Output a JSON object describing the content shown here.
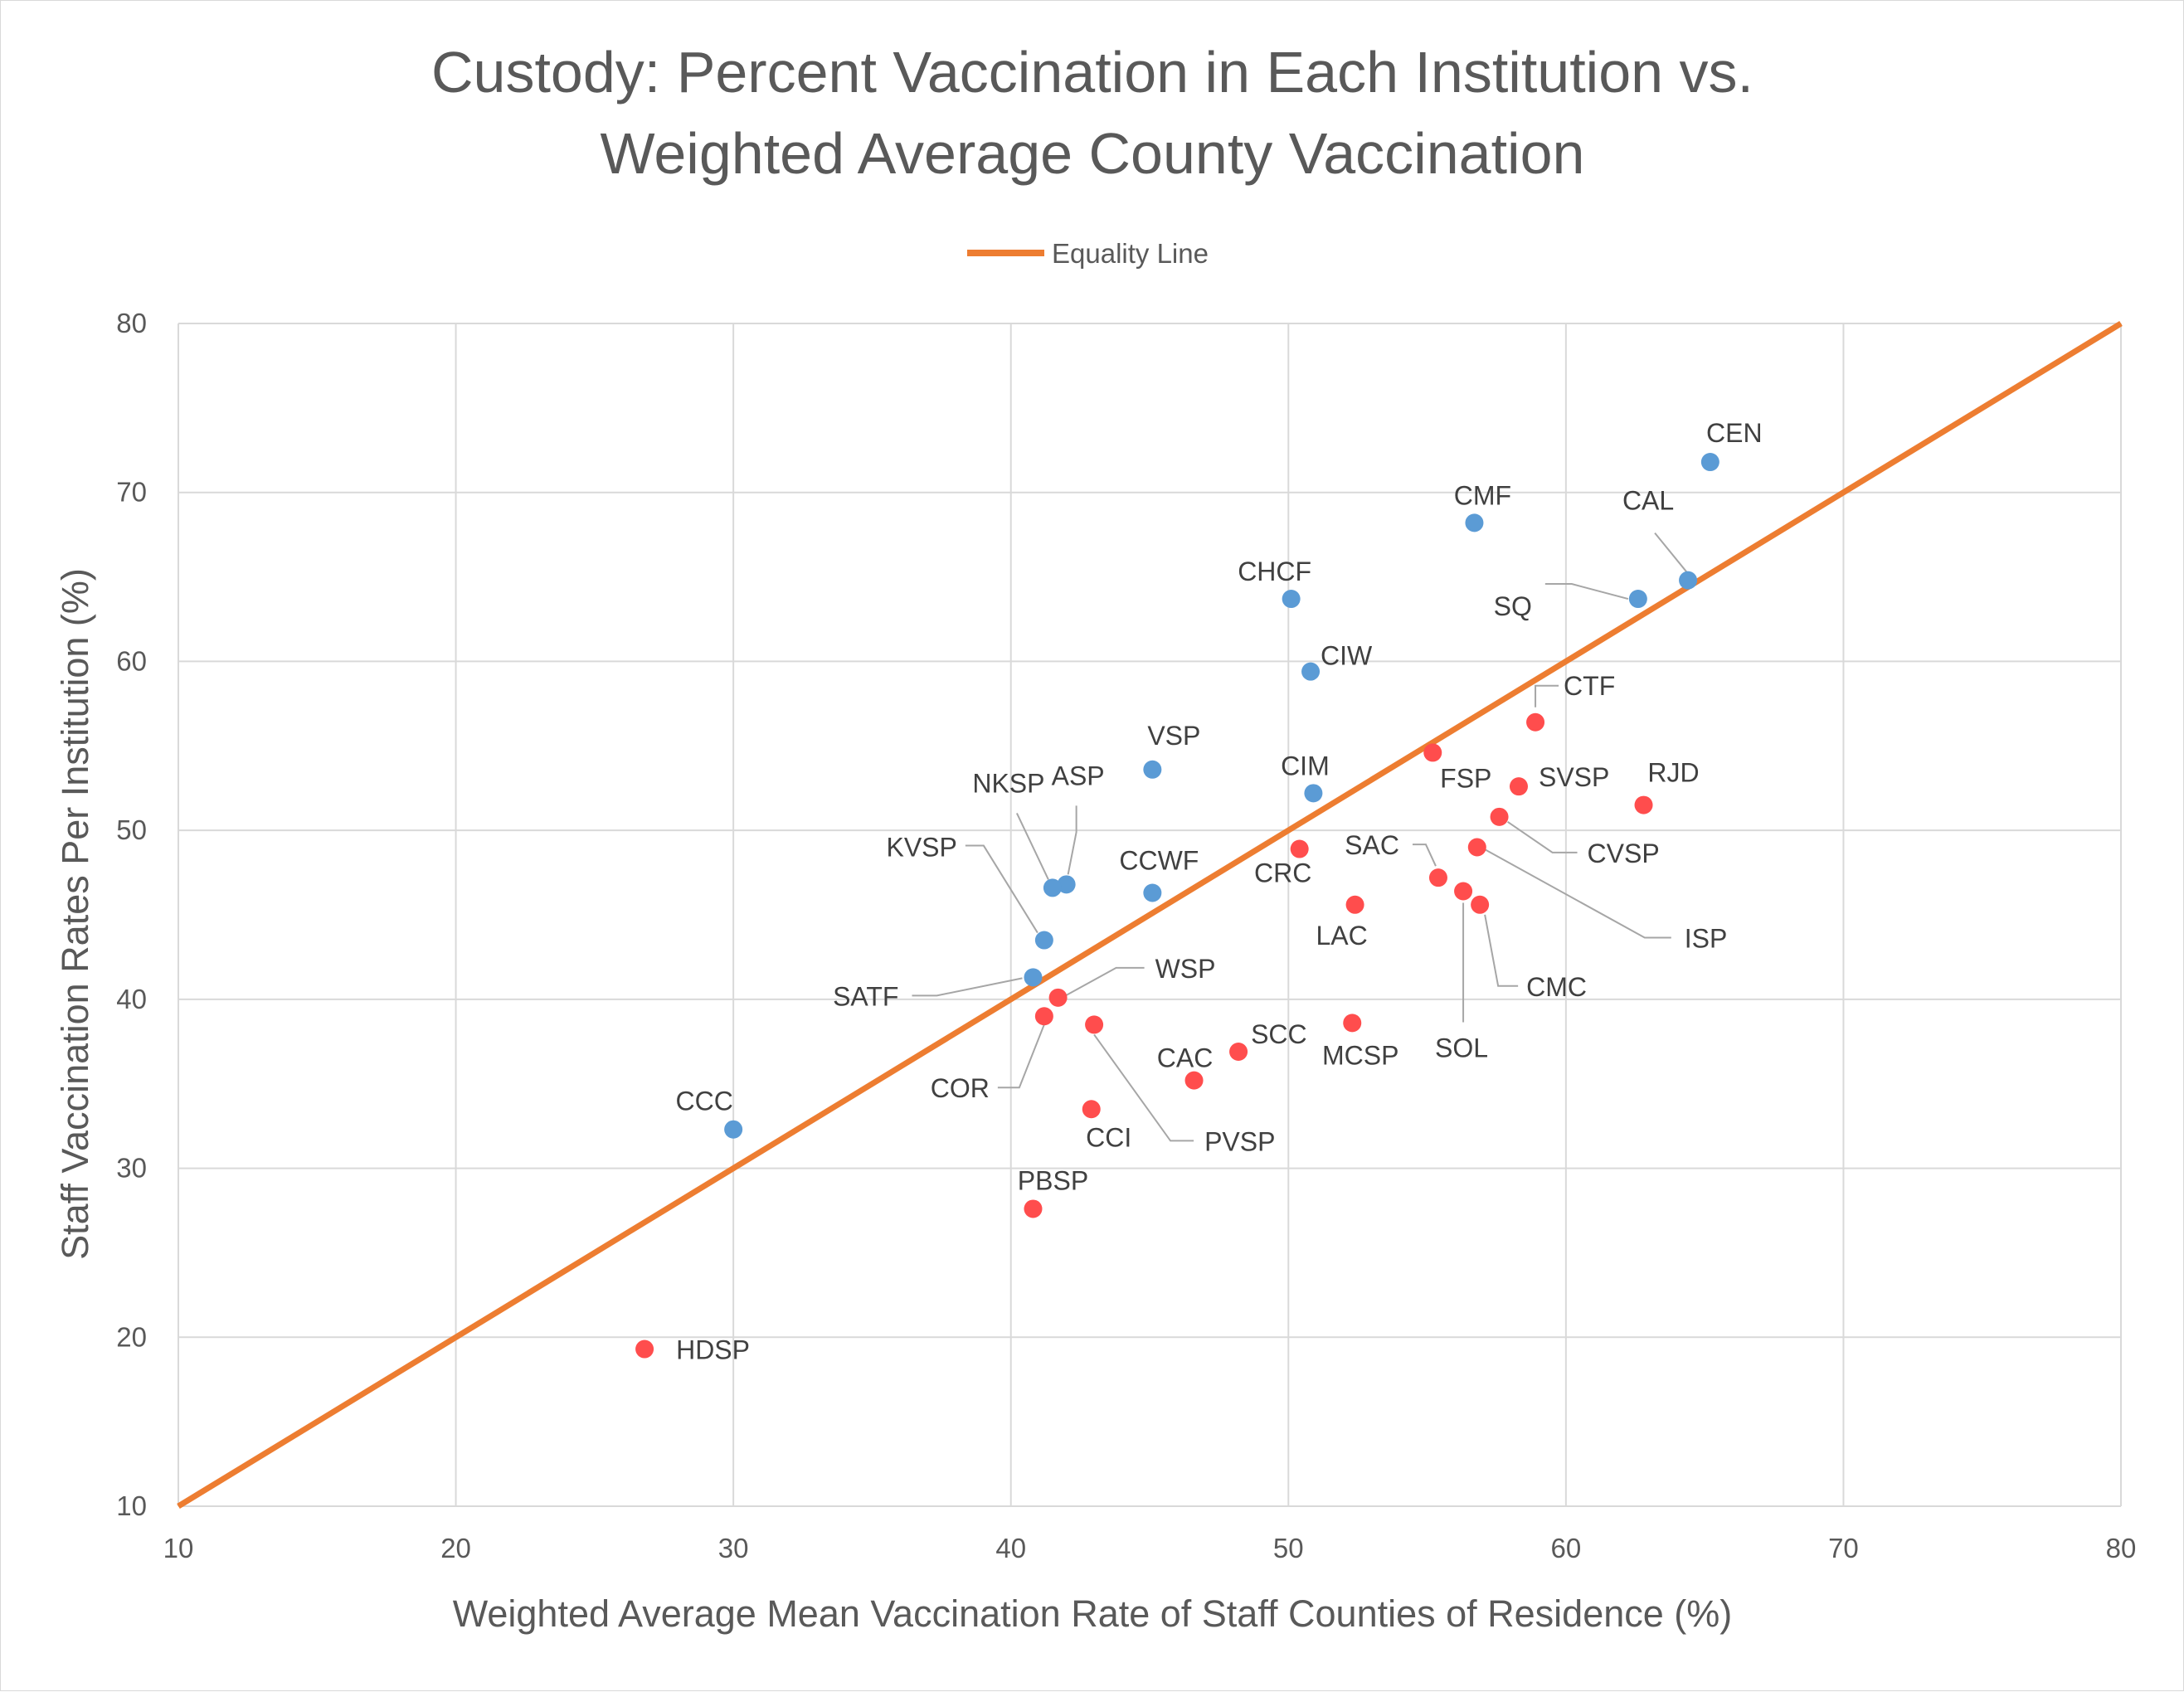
{
  "chart_data": {
    "type": "scatter",
    "title": [
      "Custody: Percent Vaccination in Each Institution vs.",
      "Weighted Average County Vaccination"
    ],
    "xlabel": "Weighted Average Mean Vaccination Rate of Staff Counties of Residence (%)",
    "ylabel": "Staff Vaccination Rates Per Institution (%)",
    "xlim": [
      10,
      80
    ],
    "ylim": [
      10,
      80
    ],
    "xticks": [
      10,
      20,
      30,
      40,
      50,
      60,
      70,
      80
    ],
    "yticks": [
      10,
      20,
      30,
      40,
      50,
      60,
      70,
      80
    ],
    "grid": true,
    "legend": {
      "position": "top",
      "entries": [
        "Equality Line"
      ]
    },
    "equality_line": {
      "name": "Equality Line",
      "color": "#ed7d31",
      "x": [
        10,
        80
      ],
      "y": [
        10,
        80
      ]
    },
    "colors": {
      "above": "#5b9bd5",
      "below": "#ff4d4d"
    },
    "points": [
      {
        "label": "CEN",
        "x": 65.2,
        "y": 71.8,
        "group": "above"
      },
      {
        "label": "CAL",
        "x": 64.4,
        "y": 64.8,
        "group": "above"
      },
      {
        "label": "SQ",
        "x": 62.6,
        "y": 63.7,
        "group": "above"
      },
      {
        "label": "CMF",
        "x": 56.7,
        "y": 68.2,
        "group": "above"
      },
      {
        "label": "CHCF",
        "x": 50.1,
        "y": 63.7,
        "group": "above"
      },
      {
        "label": "CIW",
        "x": 50.8,
        "y": 59.4,
        "group": "above"
      },
      {
        "label": "CIM",
        "x": 50.9,
        "y": 52.2,
        "group": "above"
      },
      {
        "label": "VSP",
        "x": 45.1,
        "y": 53.6,
        "group": "above"
      },
      {
        "label": "ASP",
        "x": 42.0,
        "y": 46.8,
        "group": "above"
      },
      {
        "label": "NKSP",
        "x": 41.5,
        "y": 46.6,
        "group": "above"
      },
      {
        "label": "CCWF",
        "x": 45.1,
        "y": 46.3,
        "group": "above"
      },
      {
        "label": "KVSP",
        "x": 41.2,
        "y": 43.5,
        "group": "above"
      },
      {
        "label": "SATF",
        "x": 40.8,
        "y": 41.3,
        "group": "above"
      },
      {
        "label": "CCC",
        "x": 30.0,
        "y": 32.3,
        "group": "above"
      },
      {
        "label": "CTF",
        "x": 58.9,
        "y": 56.4,
        "group": "below"
      },
      {
        "label": "FSP",
        "x": 55.2,
        "y": 54.6,
        "group": "below"
      },
      {
        "label": "SVSP",
        "x": 58.3,
        "y": 52.6,
        "group": "below"
      },
      {
        "label": "RJD",
        "x": 62.8,
        "y": 51.5,
        "group": "below"
      },
      {
        "label": "CVSP",
        "x": 57.6,
        "y": 50.8,
        "group": "below"
      },
      {
        "label": "ISP",
        "x": 56.8,
        "y": 49.0,
        "group": "below"
      },
      {
        "label": "SAC",
        "x": 55.4,
        "y": 47.2,
        "group": "below"
      },
      {
        "label": "SOL",
        "x": 56.3,
        "y": 46.4,
        "group": "below"
      },
      {
        "label": "CMC",
        "x": 56.9,
        "y": 45.6,
        "group": "below"
      },
      {
        "label": "CRC",
        "x": 50.4,
        "y": 48.9,
        "group": "below"
      },
      {
        "label": "LAC",
        "x": 52.4,
        "y": 45.6,
        "group": "below"
      },
      {
        "label": "WSP",
        "x": 41.7,
        "y": 40.1,
        "group": "below"
      },
      {
        "label": "COR",
        "x": 41.2,
        "y": 39.0,
        "group": "below"
      },
      {
        "label": "PVSP",
        "x": 43.0,
        "y": 38.5,
        "group": "below"
      },
      {
        "label": "MCSP",
        "x": 52.3,
        "y": 38.6,
        "group": "below"
      },
      {
        "label": "SCC",
        "x": 48.2,
        "y": 36.9,
        "group": "below"
      },
      {
        "label": "CAC",
        "x": 46.6,
        "y": 35.2,
        "group": "below"
      },
      {
        "label": "CCI",
        "x": 42.9,
        "y": 33.5,
        "group": "below"
      },
      {
        "label": "PBSP",
        "x": 40.8,
        "y": 27.6,
        "group": "below"
      },
      {
        "label": "HDSP",
        "x": 26.8,
        "y": 19.3,
        "group": "below"
      }
    ]
  }
}
